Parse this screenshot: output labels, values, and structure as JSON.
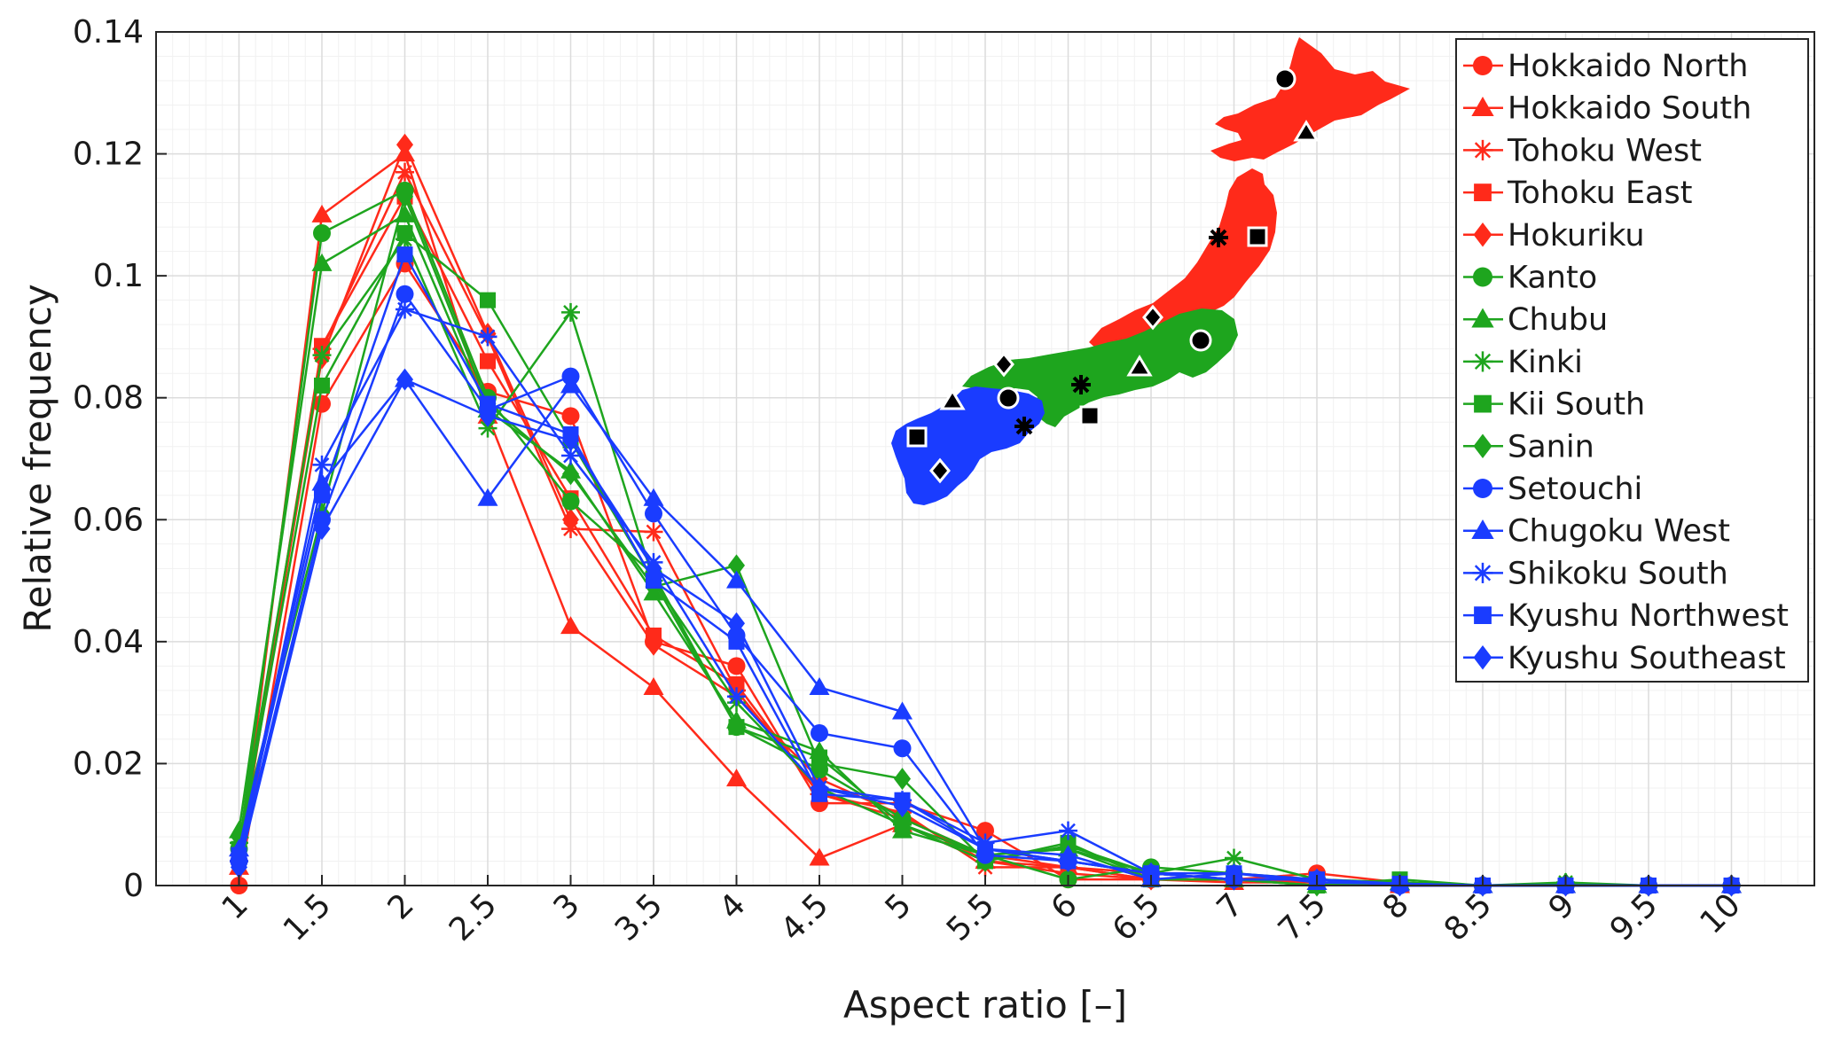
{
  "chart_data": {
    "type": "line",
    "title": "",
    "xlabel": "Aspect ratio [–]",
    "ylabel": "Relative frequency",
    "x": [
      1,
      1.5,
      2,
      2.5,
      3,
      3.5,
      4,
      4.5,
      5,
      5.5,
      6,
      6.5,
      7,
      7.5,
      8,
      8.5,
      9,
      9.5,
      10
    ],
    "x_tick_labels": [
      "1",
      "1.5",
      "2",
      "2.5",
      "3",
      "3.5",
      "4",
      "4.5",
      "5",
      "5.5",
      "6",
      "6.5",
      "7",
      "7.5",
      "8",
      "8.5",
      "9",
      "9.5",
      "10"
    ],
    "y_tick_labels": [
      "0",
      "0.02",
      "0.04",
      "0.06",
      "0.08",
      "0.1",
      "0.12",
      "0.14"
    ],
    "xlim": [
      0.5,
      10.5
    ],
    "ylim": [
      0,
      0.14
    ],
    "grid": true,
    "minor_grid": true,
    "legend_position": "top-right",
    "colors": {
      "northeast": "#ff2a1a",
      "central": "#1ea51e",
      "west": "#1a3cff"
    },
    "series": [
      {
        "name": "Hokkaido North",
        "color": "#ff2a1a",
        "marker": "circle",
        "values": [
          0.0,
          0.079,
          0.102,
          0.081,
          0.077,
          0.04,
          0.036,
          0.0135,
          0.0135,
          0.009,
          0.001,
          0.001,
          0.001,
          0.002,
          0.0005,
          0.0,
          0.0,
          0.0,
          0.0
        ]
      },
      {
        "name": "Hokkaido South",
        "color": "#ff2a1a",
        "marker": "triangle",
        "values": [
          0.003,
          0.11,
          0.12,
          0.077,
          0.0425,
          0.0325,
          0.0175,
          0.0045,
          0.01,
          0.004,
          0.003,
          0.001,
          0.0005,
          0.0005,
          0.0,
          0.0,
          0.0,
          0.0,
          0.0
        ]
      },
      {
        "name": "Tohoku West",
        "color": "#ff2a1a",
        "marker": "asterisk",
        "values": [
          0.004,
          0.088,
          0.117,
          0.09,
          0.0585,
          0.058,
          0.032,
          0.015,
          0.012,
          0.003,
          0.003,
          0.001,
          0.001,
          0.0005,
          0.0,
          0.0,
          0.0,
          0.0,
          0.0
        ]
      },
      {
        "name": "Tohoku East",
        "color": "#ff2a1a",
        "marker": "square",
        "values": [
          0.005,
          0.0885,
          0.113,
          0.086,
          0.0635,
          0.041,
          0.033,
          0.015,
          0.011,
          0.005,
          0.003,
          0.002,
          0.001,
          0.001,
          0.0003,
          0.0,
          0.0,
          0.0,
          0.0
        ]
      },
      {
        "name": "Hokuriku",
        "color": "#ff2a1a",
        "marker": "diamond",
        "values": [
          0.005,
          0.0865,
          0.1215,
          0.0905,
          0.06,
          0.0395,
          0.031,
          0.0175,
          0.0115,
          0.004,
          0.002,
          0.001,
          0.001,
          0.001,
          0.0003,
          0.0,
          0.0,
          0.0,
          0.0
        ]
      },
      {
        "name": "Kanto",
        "color": "#1ea51e",
        "marker": "circle",
        "values": [
          0.006,
          0.107,
          0.114,
          0.08,
          0.063,
          0.051,
          0.026,
          0.019,
          0.011,
          0.005,
          0.001,
          0.003,
          0.002,
          0.001,
          0.0005,
          0.0,
          0.0,
          0.0,
          0.0
        ]
      },
      {
        "name": "Chubu",
        "color": "#1ea51e",
        "marker": "triangle",
        "values": [
          0.009,
          0.102,
          0.11,
          0.078,
          0.068,
          0.048,
          0.027,
          0.022,
          0.009,
          0.005,
          0.006,
          0.001,
          0.001,
          0.0,
          0.0005,
          0.0,
          0.0,
          0.0,
          0.0
        ]
      },
      {
        "name": "Kinki",
        "color": "#1ea51e",
        "marker": "asterisk",
        "values": [
          0.007,
          0.087,
          0.106,
          0.075,
          0.094,
          0.05,
          0.03,
          0.016,
          0.01,
          0.005,
          0.006,
          0.002,
          0.0045,
          0.001,
          0.0005,
          0.0,
          0.0005,
          0.0,
          0.0
        ]
      },
      {
        "name": "Kii South",
        "color": "#1ea51e",
        "marker": "square",
        "values": [
          0.006,
          0.082,
          0.107,
          0.096,
          0.073,
          0.05,
          0.026,
          0.021,
          0.01,
          0.004,
          0.007,
          0.001,
          0.001,
          0.0,
          0.001,
          0.0,
          0.0,
          0.0,
          0.0
        ]
      },
      {
        "name": "Sanin",
        "color": "#1ea51e",
        "marker": "diamond",
        "values": [
          0.008,
          0.061,
          0.113,
          0.079,
          0.0675,
          0.049,
          0.0525,
          0.02,
          0.0175,
          0.004,
          0.0065,
          0.002,
          0.001,
          0.0,
          0.0005,
          0.0,
          0.0003,
          0.0,
          0.0
        ]
      },
      {
        "name": "Setouchi",
        "color": "#1a3cff",
        "marker": "circle",
        "values": [
          0.004,
          0.06,
          0.097,
          0.078,
          0.0835,
          0.061,
          0.041,
          0.025,
          0.0225,
          0.005,
          0.004,
          0.002,
          0.001,
          0.001,
          0.0,
          0.0,
          0.0,
          0.0,
          0.0
        ]
      },
      {
        "name": "Chugoku West",
        "color": "#1a3cff",
        "marker": "triangle",
        "values": [
          0.006,
          0.066,
          0.083,
          0.0635,
          0.082,
          0.0635,
          0.05,
          0.0325,
          0.0285,
          0.006,
          0.005,
          0.001,
          0.002,
          0.0005,
          0.0003,
          0.0,
          0.0,
          0.0,
          0.0
        ]
      },
      {
        "name": "Shikoku South",
        "color": "#1a3cff",
        "marker": "asterisk",
        "values": [
          0.004,
          0.069,
          0.0945,
          0.09,
          0.0705,
          0.053,
          0.031,
          0.016,
          0.014,
          0.007,
          0.009,
          0.002,
          0.001,
          0.001,
          0.0003,
          0.0,
          0.0,
          0.0,
          0.0
        ]
      },
      {
        "name": "Kyushu Northwest",
        "color": "#1a3cff",
        "marker": "square",
        "values": [
          0.005,
          0.064,
          0.1035,
          0.079,
          0.074,
          0.05,
          0.04,
          0.015,
          0.014,
          0.006,
          0.004,
          0.002,
          0.002,
          0.001,
          0.0003,
          0.0,
          0.0,
          0.0,
          0.0
        ]
      },
      {
        "name": "Kyushu Southeast",
        "color": "#1a3cff",
        "marker": "diamond",
        "values": [
          0.003,
          0.0585,
          0.083,
          0.077,
          0.073,
          0.052,
          0.043,
          0.016,
          0.013,
          0.006,
          0.004,
          0.002,
          0.001,
          0.001,
          0.0,
          0.0,
          0.0,
          0.0,
          0.0
        ]
      }
    ]
  }
}
